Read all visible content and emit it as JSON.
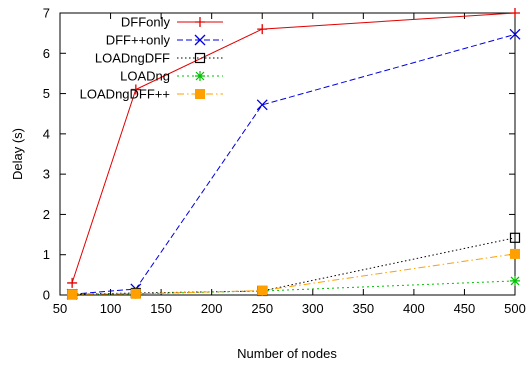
{
  "chart_data": {
    "type": "line",
    "title": "",
    "xlabel": "Number of nodes",
    "ylabel": "Delay (s)",
    "xlim": [
      50,
      500
    ],
    "ylim": [
      0,
      7
    ],
    "xticks": [
      50,
      100,
      150,
      200,
      250,
      300,
      350,
      400,
      450,
      500
    ],
    "yticks": [
      0,
      1,
      2,
      3,
      4,
      5,
      6,
      7
    ],
    "grid": false,
    "legend_position": "top-left",
    "x": [
      62,
      125,
      250,
      500
    ],
    "series": [
      {
        "name": "DFFonly",
        "values": [
          0.3,
          5.1,
          6.6,
          7.0
        ],
        "color": "#e00000",
        "dash": "",
        "marker": "plus"
      },
      {
        "name": "DFF++only",
        "values": [
          0.02,
          0.15,
          4.72,
          6.47
        ],
        "color": "#0000e0",
        "dash": "6,3",
        "marker": "cross"
      },
      {
        "name": "LOADngDFF",
        "values": [
          0.02,
          0.05,
          0.1,
          1.42
        ],
        "color": "#000000",
        "dash": "1.5,2.5",
        "marker": "square-open"
      },
      {
        "name": "LOADng",
        "values": [
          0.02,
          0.03,
          0.1,
          0.35
        ],
        "color": "#00c000",
        "dash": "2,3",
        "marker": "star"
      },
      {
        "name": "LOADngDFF++",
        "values": [
          0.02,
          0.03,
          0.11,
          1.02
        ],
        "color": "#ffa000",
        "dash": "7,3,1.5,3",
        "marker": "square-filled"
      }
    ]
  }
}
